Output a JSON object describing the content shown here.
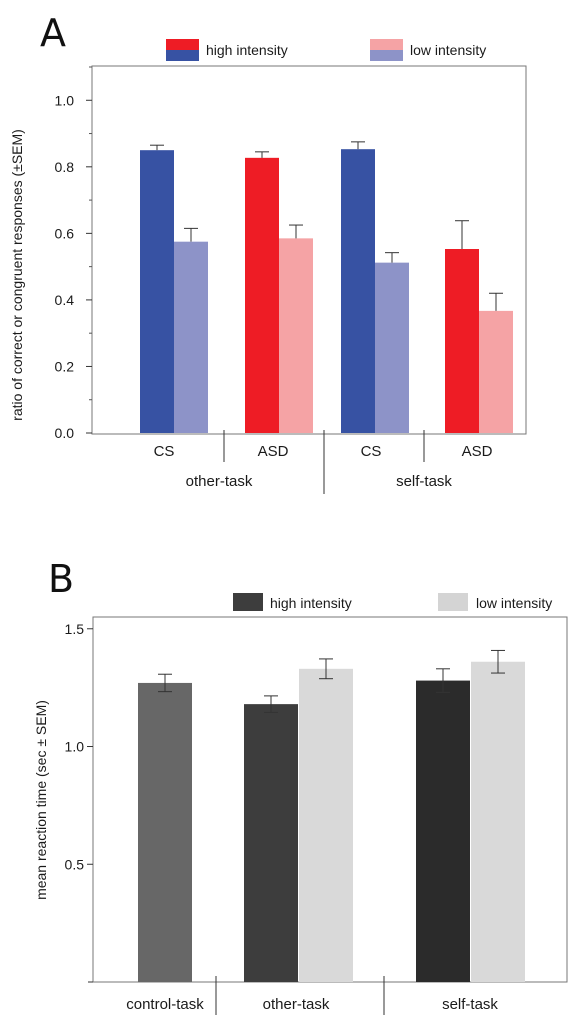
{
  "chart_data": [
    {
      "type": "bar",
      "panel_label": "A",
      "ylabel": "ratio of correct or congruent responses (±SEM)",
      "ylim": [
        0,
        1.1
      ],
      "yticks": [
        "0.0",
        "0.2",
        "0.4",
        "0.6",
        "0.8",
        "1.0"
      ],
      "ytick_values": [
        0,
        0.2,
        0.4,
        0.6,
        0.8,
        1.0
      ],
      "legend": {
        "placement": "top",
        "entries": [
          {
            "label": "high intensity",
            "colors": [
              "#ee1c25",
              "#3752a3"
            ]
          },
          {
            "label": "low intensity",
            "colors": [
              "#f5a3a5",
              "#8d93c8"
            ]
          }
        ]
      },
      "categories": [
        "CS",
        "ASD",
        "CS",
        "ASD"
      ],
      "groups": [
        "other-task",
        "self-task"
      ],
      "bars": [
        {
          "category": 0,
          "intensity": "high",
          "value": 0.85,
          "error": 0.015,
          "color": "#3752a3"
        },
        {
          "category": 0,
          "intensity": "low",
          "value": 0.575,
          "error": 0.04,
          "color": "#8d93c8"
        },
        {
          "category": 1,
          "intensity": "high",
          "value": 0.827,
          "error": 0.018,
          "color": "#ee1c25"
        },
        {
          "category": 1,
          "intensity": "low",
          "value": 0.585,
          "error": 0.04,
          "color": "#f5a3a5"
        },
        {
          "category": 2,
          "intensity": "high",
          "value": 0.853,
          "error": 0.022,
          "color": "#3752a3"
        },
        {
          "category": 2,
          "intensity": "low",
          "value": 0.512,
          "error": 0.03,
          "color": "#8d93c8"
        },
        {
          "category": 3,
          "intensity": "high",
          "value": 0.553,
          "error": 0.085,
          "color": "#ee1c25"
        },
        {
          "category": 3,
          "intensity": "low",
          "value": 0.367,
          "error": 0.053,
          "color": "#f5a3a5"
        }
      ]
    },
    {
      "type": "bar",
      "panel_label": "B",
      "ylabel": "mean reaction time (sec ± SEM)",
      "ylim": [
        0,
        1.55
      ],
      "yticks": [
        "0.5",
        "1.0",
        "1.5"
      ],
      "ytick_values": [
        0.5,
        1.0,
        1.5
      ],
      "legend": {
        "placement": "top",
        "entries": [
          {
            "label": "high intensity",
            "colors": [
              "#3d3d3d"
            ]
          },
          {
            "label": "low intensity",
            "colors": [
              "#d4d4d4"
            ]
          }
        ]
      },
      "categories": [
        "control-task",
        "other-task",
        "self-task"
      ],
      "bars": [
        {
          "category": 0,
          "intensity": "single",
          "value": 1.27,
          "error": 0.037,
          "color": "#676767"
        },
        {
          "category": 1,
          "intensity": "high",
          "value": 1.18,
          "error": 0.035,
          "color": "#3d3d3d"
        },
        {
          "category": 1,
          "intensity": "low",
          "value": 1.33,
          "error": 0.042,
          "color": "#d9d9d9"
        },
        {
          "category": 2,
          "intensity": "high",
          "value": 1.28,
          "error": 0.05,
          "color": "#2b2b2b"
        },
        {
          "category": 2,
          "intensity": "low",
          "value": 1.36,
          "error": 0.048,
          "color": "#d9d9d9"
        }
      ]
    }
  ]
}
